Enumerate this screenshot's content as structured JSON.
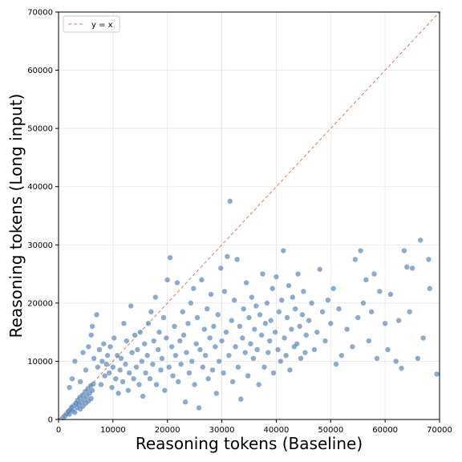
{
  "chart_data": {
    "type": "scatter",
    "title": "",
    "xlabel": "Reasoning tokens (Baseline)",
    "ylabel": "Reasoning tokens (Long input)",
    "xlim": [
      0,
      70000
    ],
    "ylim": [
      0,
      70000
    ],
    "xticks": [
      0,
      10000,
      20000,
      30000,
      40000,
      50000,
      60000,
      70000
    ],
    "yticks": [
      0,
      10000,
      20000,
      30000,
      40000,
      50000,
      60000,
      70000
    ],
    "grid": true,
    "legend": {
      "placement": "top-left",
      "entries": [
        "y = x"
      ]
    },
    "reference_line": {
      "label": "y = x",
      "color": "#e8735a",
      "style": "dashed"
    },
    "point_color": "#5b87b8",
    "points": [
      [
        800,
        300
      ],
      [
        1200,
        600
      ],
      [
        1500,
        1000
      ],
      [
        1800,
        1400
      ],
      [
        2000,
        900
      ],
      [
        2200,
        1700
      ],
      [
        2400,
        2100
      ],
      [
        2600,
        1500
      ],
      [
        2800,
        2400
      ],
      [
        3000,
        1200
      ],
      [
        3200,
        2800
      ],
      [
        3400,
        2000
      ],
      [
        3500,
        3300
      ],
      [
        3700,
        2600
      ],
      [
        3900,
        3800
      ],
      [
        4000,
        1800
      ],
      [
        4200,
        3000
      ],
      [
        4400,
        4200
      ],
      [
        4500,
        2300
      ],
      [
        4700,
        3500
      ],
      [
        4900,
        4800
      ],
      [
        5000,
        2800
      ],
      [
        5200,
        4000
      ],
      [
        5400,
        5300
      ],
      [
        5500,
        3200
      ],
      [
        5700,
        4500
      ],
      [
        5900,
        5800
      ],
      [
        6000,
        3600
      ],
      [
        6200,
        5000
      ],
      [
        6400,
        6100
      ],
      [
        2000,
        5500
      ],
      [
        2500,
        7000
      ],
      [
        3000,
        10000
      ],
      [
        4000,
        6500
      ],
      [
        4500,
        11500
      ],
      [
        5000,
        8500
      ],
      [
        5500,
        12500
      ],
      [
        6000,
        14500
      ],
      [
        6200,
        16000
      ],
      [
        6500,
        10500
      ],
      [
        7000,
        18000
      ],
      [
        7200,
        9000
      ],
      [
        7500,
        12000
      ],
      [
        7800,
        6000
      ],
      [
        8000,
        10000
      ],
      [
        8300,
        13000
      ],
      [
        8500,
        7500
      ],
      [
        8800,
        9500
      ],
      [
        9000,
        11000
      ],
      [
        9300,
        8000
      ],
      [
        9500,
        12500
      ],
      [
        9800,
        5500
      ],
      [
        10000,
        9000
      ],
      [
        10200,
        14000
      ],
      [
        10500,
        7000
      ],
      [
        10800,
        11000
      ],
      [
        11000,
        4500
      ],
      [
        11300,
        8500
      ],
      [
        11500,
        10500
      ],
      [
        11800,
        6500
      ],
      [
        12000,
        16500
      ],
      [
        12300,
        9500
      ],
      [
        12500,
        13500
      ],
      [
        12800,
        5000
      ],
      [
        13000,
        8000
      ],
      [
        13300,
        19500
      ],
      [
        13500,
        11500
      ],
      [
        13800,
        7000
      ],
      [
        14000,
        14500
      ],
      [
        14300,
        9000
      ],
      [
        14500,
        12000
      ],
      [
        14800,
        6000
      ],
      [
        15000,
        15000
      ],
      [
        15300,
        10000
      ],
      [
        15500,
        4000
      ],
      [
        15800,
        13000
      ],
      [
        16000,
        8000
      ],
      [
        16300,
        11000
      ],
      [
        16500,
        16500
      ],
      [
        16800,
        7000
      ],
      [
        17000,
        18500
      ],
      [
        17300,
        9500
      ],
      [
        17500,
        13500
      ],
      [
        17800,
        21000
      ],
      [
        18000,
        6000
      ],
      [
        18300,
        12000
      ],
      [
        18500,
        15000
      ],
      [
        18800,
        8500
      ],
      [
        19000,
        10500
      ],
      [
        19300,
        17500
      ],
      [
        19500,
        5000
      ],
      [
        19800,
        14000
      ],
      [
        20000,
        24000
      ],
      [
        20300,
        9000
      ],
      [
        20500,
        27800
      ],
      [
        20800,
        12500
      ],
      [
        21000,
        7500
      ],
      [
        21300,
        16000
      ],
      [
        21500,
        11000
      ],
      [
        21800,
        23500
      ],
      [
        22000,
        6500
      ],
      [
        22300,
        13500
      ],
      [
        22500,
        9500
      ],
      [
        22800,
        18500
      ],
      [
        23000,
        14500
      ],
      [
        23300,
        3000
      ],
      [
        23500,
        11500
      ],
      [
        23800,
        16500
      ],
      [
        24000,
        8000
      ],
      [
        24300,
        20000
      ],
      [
        24500,
        10000
      ],
      [
        24800,
        22500
      ],
      [
        25000,
        6000
      ],
      [
        25300,
        13000
      ],
      [
        25500,
        17500
      ],
      [
        25800,
        2000
      ],
      [
        26000,
        12000
      ],
      [
        26300,
        24000
      ],
      [
        26500,
        9000
      ],
      [
        26800,
        15500
      ],
      [
        27000,
        11000
      ],
      [
        27300,
        19000
      ],
      [
        27500,
        7000
      ],
      [
        27800,
        14000
      ],
      [
        28000,
        21500
      ],
      [
        28300,
        8500
      ],
      [
        28500,
        16000
      ],
      [
        28800,
        12500
      ],
      [
        29000,
        4500
      ],
      [
        29300,
        18000
      ],
      [
        29500,
        10000
      ],
      [
        29800,
        26000
      ],
      [
        30000,
        13500
      ],
      [
        30300,
        8000
      ],
      [
        30500,
        22000
      ],
      [
        30800,
        15000
      ],
      [
        31000,
        28000
      ],
      [
        31300,
        11000
      ],
      [
        31500,
        37500
      ],
      [
        31800,
        17000
      ],
      [
        32000,
        6500
      ],
      [
        32300,
        20500
      ],
      [
        32500,
        12500
      ],
      [
        32800,
        27500
      ],
      [
        33000,
        9000
      ],
      [
        33300,
        16000
      ],
      [
        33500,
        3500
      ],
      [
        33800,
        14000
      ],
      [
        34000,
        19000
      ],
      [
        34300,
        11500
      ],
      [
        34500,
        23500
      ],
      [
        34800,
        7500
      ],
      [
        35000,
        17500
      ],
      [
        35300,
        13000
      ],
      [
        35500,
        21000
      ],
      [
        35800,
        10500
      ],
      [
        36000,
        15500
      ],
      [
        36300,
        19500
      ],
      [
        36500,
        12000
      ],
      [
        36800,
        6000
      ],
      [
        37000,
        18000
      ],
      [
        37300,
        14500
      ],
      [
        37500,
        25000
      ],
      [
        37800,
        9000
      ],
      [
        38000,
        16500
      ],
      [
        38300,
        20000
      ],
      [
        38500,
        11500
      ],
      [
        38800,
        13500
      ],
      [
        39000,
        17000
      ],
      [
        39300,
        22500
      ],
      [
        39500,
        8000
      ],
      [
        39800,
        15000
      ],
      [
        40000,
        24500
      ],
      [
        40300,
        12000
      ],
      [
        40500,
        18500
      ],
      [
        40800,
        10000
      ],
      [
        41000,
        20500
      ],
      [
        41300,
        29000
      ],
      [
        41500,
        14000
      ],
      [
        41800,
        11000
      ],
      [
        42000,
        17500
      ],
      [
        42300,
        23000
      ],
      [
        42500,
        8500
      ],
      [
        42800,
        15500
      ],
      [
        43000,
        21000
      ],
      [
        43300,
        12500
      ],
      [
        43500,
        19000
      ],
      [
        43800,
        13000
      ],
      [
        44000,
        25000
      ],
      [
        44300,
        16000
      ],
      [
        44500,
        10500
      ],
      [
        44800,
        18000
      ],
      [
        45000,
        22000
      ],
      [
        45300,
        11500
      ],
      [
        45500,
        14500
      ],
      [
        46000,
        17000
      ],
      [
        46500,
        20000
      ],
      [
        47000,
        12000
      ],
      [
        47500,
        15000
      ],
      [
        48000,
        25800
      ],
      [
        48500,
        18500
      ],
      [
        49000,
        13500
      ],
      [
        49500,
        20500
      ],
      [
        50000,
        16500
      ],
      [
        50500,
        22500
      ],
      [
        51000,
        9500
      ],
      [
        51500,
        19000
      ],
      [
        52000,
        11000
      ],
      [
        53000,
        15500
      ],
      [
        54000,
        12500
      ],
      [
        54500,
        27500
      ],
      [
        55000,
        17500
      ],
      [
        55500,
        29000
      ],
      [
        56000,
        20000
      ],
      [
        56500,
        24000
      ],
      [
        57000,
        13500
      ],
      [
        57500,
        18500
      ],
      [
        58000,
        25000
      ],
      [
        58500,
        10500
      ],
      [
        59000,
        22000
      ],
      [
        60000,
        16500
      ],
      [
        60500,
        12000
      ],
      [
        61000,
        21500
      ],
      [
        62000,
        10000
      ],
      [
        62500,
        17000
      ],
      [
        63000,
        8800
      ],
      [
        63500,
        29000
      ],
      [
        64000,
        26200
      ],
      [
        64500,
        18500
      ],
      [
        65000,
        26000
      ],
      [
        66000,
        10500
      ],
      [
        66500,
        30800
      ],
      [
        67000,
        14000
      ],
      [
        68000,
        27500
      ],
      [
        68200,
        22500
      ],
      [
        69500,
        7800
      ]
    ]
  }
}
